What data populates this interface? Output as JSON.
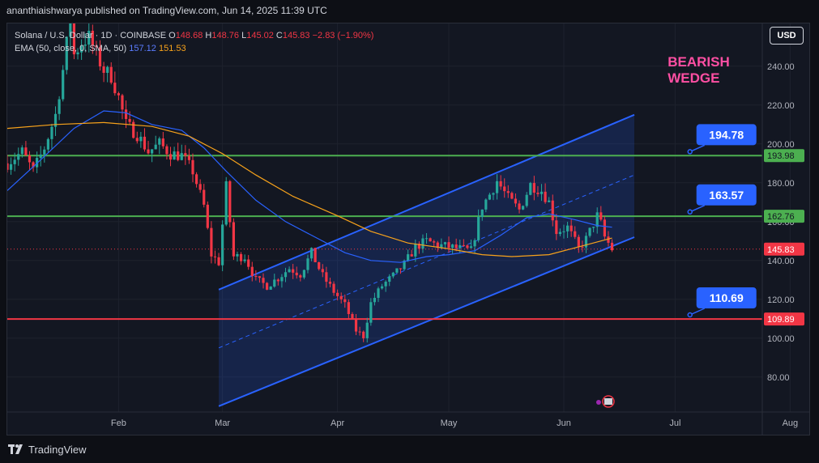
{
  "header": {
    "publisher_line": "ananthiaishwarya published on TradingView.com, Jun 14, 2025 11:39 UTC"
  },
  "legend": {
    "symbol": "Solana / U.S. Dollar · 1D · COINBASE",
    "o_label": "O",
    "o_value": "148.68",
    "h_label": "H",
    "h_value": "148.76",
    "l_label": "L",
    "l_value": "145.02",
    "c_label": "C",
    "c_value": "145.83",
    "change": "−2.83 (−1.90%)",
    "indicator": "EMA (50, close, 0, SMA, 50)",
    "ema_value": "157.12",
    "sma_value": "151.53"
  },
  "currency_button": "USD",
  "footer": {
    "brand": "TradingView"
  },
  "colors": {
    "up": "#26a69a",
    "down": "#f23645",
    "ema": "#2962ff",
    "sma": "#f7a21b",
    "support_green": "#4caf50",
    "support_red": "#f23645",
    "channel": "#2962ff",
    "annotation_pink": "#ff4fa3",
    "callout_blue": "#2962ff"
  },
  "chart_data": {
    "type": "candlestick",
    "title": "Solana / U.S. Dollar · 1D · COINBASE",
    "ylim": [
      62,
      262
    ],
    "y_ticks": [
      80,
      100,
      120,
      140,
      160,
      180,
      200,
      220,
      240
    ],
    "y_tick_labels": [
      "80.00",
      "100.00",
      "120.00",
      "140.00",
      "160.00",
      "180.00",
      "200.00",
      "220.00",
      "240.00"
    ],
    "x_tick_labels": [
      {
        "label": "Feb",
        "date": "2025-02-01"
      },
      {
        "label": "Mar",
        "date": "2025-03-01"
      },
      {
        "label": "Apr",
        "date": "2025-04-01"
      },
      {
        "label": "May",
        "date": "2025-05-01"
      },
      {
        "label": "Jun",
        "date": "2025-06-01"
      },
      {
        "label": "Jul",
        "date": "2025-07-01"
      },
      {
        "label": "Aug",
        "date": "2025-08-01"
      }
    ],
    "grid": true,
    "close_path": [
      [
        "2025-01-02",
        190
      ],
      [
        "2025-01-06",
        196
      ],
      [
        "2025-01-09",
        186
      ],
      [
        "2025-01-12",
        198
      ],
      [
        "2025-01-15",
        215
      ],
      [
        "2025-01-17",
        238
      ],
      [
        "2025-01-19",
        265
      ],
      [
        "2025-01-20",
        246
      ],
      [
        "2025-01-22",
        252
      ],
      [
        "2025-01-24",
        255
      ],
      [
        "2025-01-26",
        246
      ],
      [
        "2025-01-28",
        238
      ],
      [
        "2025-01-30",
        235
      ],
      [
        "2025-02-01",
        224
      ],
      [
        "2025-02-03",
        210
      ],
      [
        "2025-02-06",
        205
      ],
      [
        "2025-02-09",
        196
      ],
      [
        "2025-02-12",
        200
      ],
      [
        "2025-02-15",
        195
      ],
      [
        "2025-02-18",
        194
      ],
      [
        "2025-02-21",
        186
      ],
      [
        "2025-02-24",
        168
      ],
      [
        "2025-02-26",
        143
      ],
      [
        "2025-02-28",
        139
      ],
      [
        "2025-03-02",
        178
      ],
      [
        "2025-03-04",
        142
      ],
      [
        "2025-03-07",
        142
      ],
      [
        "2025-03-10",
        130
      ],
      [
        "2025-03-13",
        127
      ],
      [
        "2025-03-16",
        131
      ],
      [
        "2025-03-19",
        136
      ],
      [
        "2025-03-22",
        133
      ],
      [
        "2025-03-25",
        144
      ],
      [
        "2025-03-28",
        132
      ],
      [
        "2025-03-31",
        124
      ],
      [
        "2025-04-03",
        117
      ],
      [
        "2025-04-06",
        104
      ],
      [
        "2025-04-08",
        101
      ],
      [
        "2025-04-10",
        118
      ],
      [
        "2025-04-13",
        127
      ],
      [
        "2025-04-16",
        132
      ],
      [
        "2025-04-19",
        138
      ],
      [
        "2025-04-22",
        147
      ],
      [
        "2025-04-25",
        150
      ],
      [
        "2025-04-28",
        148
      ],
      [
        "2025-05-01",
        147
      ],
      [
        "2025-05-04",
        146
      ],
      [
        "2025-05-07",
        145
      ],
      [
        "2025-05-10",
        168
      ],
      [
        "2025-05-12",
        174
      ],
      [
        "2025-05-14",
        181
      ],
      [
        "2025-05-17",
        172
      ],
      [
        "2025-05-20",
        166
      ],
      [
        "2025-05-23",
        179
      ],
      [
        "2025-05-26",
        176
      ],
      [
        "2025-05-28",
        170
      ],
      [
        "2025-05-30",
        155
      ],
      [
        "2025-06-02",
        157
      ],
      [
        "2025-06-05",
        146
      ],
      [
        "2025-06-07",
        151
      ],
      [
        "2025-06-10",
        163
      ],
      [
        "2025-06-11",
        159
      ],
      [
        "2025-06-12",
        152
      ],
      [
        "2025-06-14",
        145.83
      ]
    ],
    "ema_path": [
      [
        "2025-01-02",
        176
      ],
      [
        "2025-01-10",
        190
      ],
      [
        "2025-01-20",
        208
      ],
      [
        "2025-01-28",
        217
      ],
      [
        "2025-02-03",
        216
      ],
      [
        "2025-02-10",
        210
      ],
      [
        "2025-02-18",
        207
      ],
      [
        "2025-02-24",
        198
      ],
      [
        "2025-03-02",
        186
      ],
      [
        "2025-03-10",
        171
      ],
      [
        "2025-03-18",
        160
      ],
      [
        "2025-03-26",
        152
      ],
      [
        "2025-04-03",
        144
      ],
      [
        "2025-04-10",
        140
      ],
      [
        "2025-04-18",
        139
      ],
      [
        "2025-04-25",
        142
      ],
      [
        "2025-05-01",
        143
      ],
      [
        "2025-05-08",
        145
      ],
      [
        "2025-05-15",
        153
      ],
      [
        "2025-05-22",
        162
      ],
      [
        "2025-05-28",
        164
      ],
      [
        "2025-06-04",
        161
      ],
      [
        "2025-06-10",
        158
      ],
      [
        "2025-06-14",
        157.12
      ]
    ],
    "sma_path": [
      [
        "2025-01-02",
        208
      ],
      [
        "2025-01-15",
        210
      ],
      [
        "2025-01-28",
        211
      ],
      [
        "2025-02-10",
        209
      ],
      [
        "2025-02-20",
        204
      ],
      [
        "2025-03-01",
        195
      ],
      [
        "2025-03-10",
        184
      ],
      [
        "2025-03-20",
        173
      ],
      [
        "2025-04-01",
        163
      ],
      [
        "2025-04-10",
        155
      ],
      [
        "2025-04-20",
        149
      ],
      [
        "2025-05-01",
        146
      ],
      [
        "2025-05-10",
        143
      ],
      [
        "2025-05-18",
        142
      ],
      [
        "2025-05-28",
        143
      ],
      [
        "2025-06-07",
        148
      ],
      [
        "2025-06-14",
        151.53
      ]
    ],
    "channel": {
      "upper": [
        [
          "2025-02-28",
          125
        ],
        [
          "2025-06-20",
          215
        ]
      ],
      "lower": [
        [
          "2025-02-28",
          65
        ],
        [
          "2025-06-20",
          152
        ]
      ],
      "mid": [
        [
          "2025-02-28",
          95
        ],
        [
          "2025-06-20",
          184
        ]
      ],
      "end": "2025-06-20"
    },
    "levels": [
      {
        "value": 193.98,
        "label": "193.98",
        "color": "#4caf50"
      },
      {
        "value": 162.76,
        "label": "162.76",
        "color": "#4caf50"
      },
      {
        "value": 109.89,
        "label": "109.89",
        "color": "#f23645"
      }
    ],
    "last_price": {
      "value": 145.83,
      "label": "145.83"
    },
    "annotations": {
      "title_lines": [
        "BEARISH",
        "WEDGE"
      ],
      "title_anchor": {
        "date": "2025-06-29",
        "value": 240
      },
      "callouts": [
        {
          "label": "194.78",
          "date": "2025-07-05",
          "value": 196
        },
        {
          "label": "163.57",
          "date": "2025-07-05",
          "value": 165
        },
        {
          "label": "110.69",
          "date": "2025-07-05",
          "value": 112
        }
      ]
    }
  }
}
